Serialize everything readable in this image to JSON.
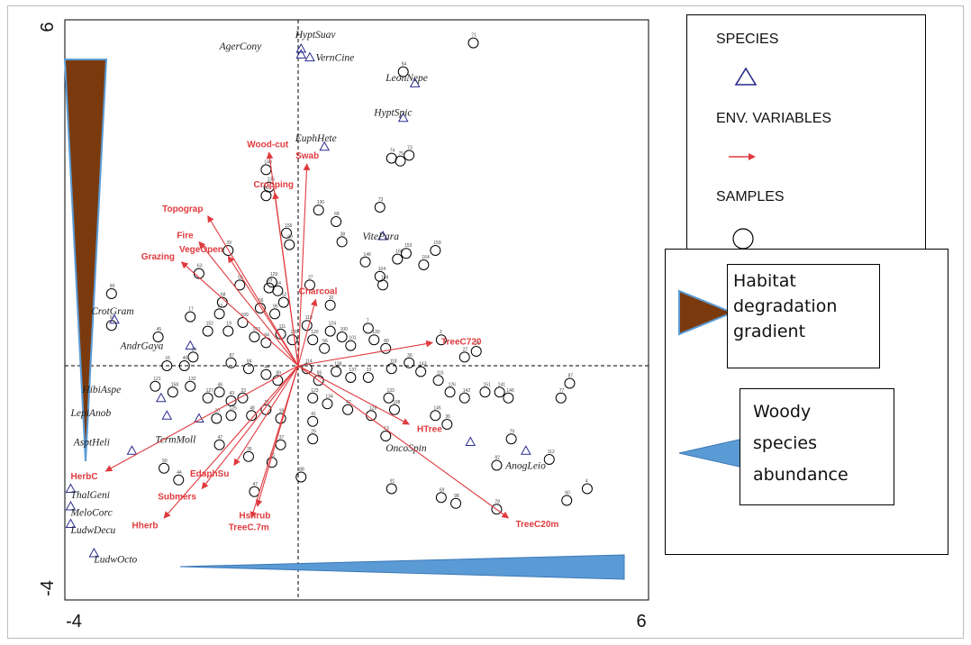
{
  "chart_data": {
    "type": "scatter",
    "subtype": "ordination-triplot",
    "xlim": [
      -4,
      6
    ],
    "ylim": [
      -4,
      6
    ],
    "x_ticks": [
      "-4",
      "6"
    ],
    "y_ticks": [
      "-4",
      "6"
    ],
    "colors": {
      "env_arrow": "#e03a3e",
      "species_marker": "#2b2b8f",
      "sample_marker": "#000000",
      "degradation_wedge": "#7b3a0d",
      "woody_wedge": "#5b9bd5"
    },
    "legend": {
      "placement": "right",
      "items": [
        {
          "label": "SPECIES",
          "marker": "triangle"
        },
        {
          "label": "ENV. VARIABLES",
          "marker": "arrow"
        },
        {
          "label": "SAMPLES",
          "marker": "circle"
        }
      ]
    },
    "gradient_legend": [
      {
        "label": "Habitat degradation gradient",
        "lines": [
          "Habitat",
          "degradation",
          "gradient"
        ]
      },
      {
        "label": "Woody species abundance",
        "lines": [
          "Woody",
          "species",
          "abundance"
        ]
      }
    ],
    "env_variables": [
      {
        "name": "Wood-cut",
        "x": -0.5,
        "y": 3.7
      },
      {
        "name": "Swab",
        "x": 0.15,
        "y": 3.5
      },
      {
        "name": "Cropping",
        "x": -0.4,
        "y": 3.0
      },
      {
        "name": "Topograp",
        "x": -1.55,
        "y": 2.6
      },
      {
        "name": "Fire",
        "x": -1.7,
        "y": 2.15
      },
      {
        "name": "Grazing",
        "x": -2.0,
        "y": 1.8
      },
      {
        "name": "VegeOpen",
        "x": -1.2,
        "y": 1.9
      },
      {
        "name": "Charcoal",
        "x": 0.3,
        "y": 1.15
      },
      {
        "name": "TreeC720",
        "x": 2.3,
        "y": 0.4
      },
      {
        "name": "HTree",
        "x": 1.9,
        "y": -1.0
      },
      {
        "name": "TreeC20m",
        "x": 3.6,
        "y": -2.6
      },
      {
        "name": "EdaphSu",
        "x": -1.1,
        "y": -1.7
      },
      {
        "name": "Submers",
        "x": -1.65,
        "y": -2.1
      },
      {
        "name": "Hherb",
        "x": -2.3,
        "y": -2.6
      },
      {
        "name": "Hshrub",
        "x": -0.7,
        "y": -2.4
      },
      {
        "name": "TreeC.7m",
        "x": -0.8,
        "y": -2.6
      },
      {
        "name": "HerbC",
        "x": -3.3,
        "y": -1.8
      }
    ],
    "species": [
      {
        "name": "HyptSuav",
        "x": 0.05,
        "y": 5.5,
        "lx": -0.05,
        "ly": 5.75
      },
      {
        "name": "AgerCony",
        "x": 0.05,
        "y": 5.4,
        "lx": -1.35,
        "ly": 5.55
      },
      {
        "name": "VernCine",
        "x": 0.2,
        "y": 5.35,
        "lx": 0.3,
        "ly": 5.35
      },
      {
        "name": "LeonNepe",
        "x": 2.0,
        "y": 4.9,
        "lx": 1.5,
        "ly": 5.0
      },
      {
        "name": "HyptSpic",
        "x": 1.8,
        "y": 4.3,
        "lx": 1.3,
        "ly": 4.4
      },
      {
        "name": "EuphHete",
        "x": 0.45,
        "y": 3.8,
        "lx": -0.05,
        "ly": 3.95
      },
      {
        "name": "VitePara",
        "x": 1.45,
        "y": 2.25,
        "lx": 1.1,
        "ly": 2.25
      },
      {
        "name": "CrotGram",
        "x": -3.15,
        "y": 0.8,
        "lx": -3.55,
        "ly": 0.95
      },
      {
        "name": "AndrGaya",
        "x": -1.85,
        "y": 0.35,
        "lx": -3.05,
        "ly": 0.35
      },
      {
        "name": "HibiAspe",
        "x": -2.35,
        "y": -0.55,
        "lx": -3.7,
        "ly": -0.4
      },
      {
        "name": "LepiAnob",
        "x": -2.25,
        "y": -0.85,
        "lx": -3.9,
        "ly": -0.8
      },
      {
        "name": "AsptHeli",
        "x": -2.85,
        "y": -1.45,
        "lx": -3.85,
        "ly": -1.3
      },
      {
        "name": "TermMoll",
        "x": -1.7,
        "y": -0.9,
        "lx": -2.45,
        "ly": -1.25
      },
      {
        "name": "OncoSpin",
        "x": 2.95,
        "y": -1.3,
        "lx": 1.5,
        "ly": -1.4
      },
      {
        "name": "AnogLeio",
        "x": 3.9,
        "y": -1.45,
        "lx": 3.55,
        "ly": -1.7
      },
      {
        "name": "ThalGeni",
        "x": -3.9,
        "y": -2.1,
        "lx": -3.9,
        "ly": -2.2
      },
      {
        "name": "MeloCorc",
        "x": -3.9,
        "y": -2.4,
        "lx": -3.9,
        "ly": -2.5
      },
      {
        "name": "LudwDecu",
        "x": -3.9,
        "y": -2.7,
        "lx": -3.9,
        "ly": -2.8
      },
      {
        "name": "LudwOcto",
        "x": -3.5,
        "y": -3.2,
        "lx": -3.5,
        "ly": -3.3
      }
    ],
    "samples": [
      {
        "x": 3.0,
        "y": 5.6,
        "id": "71"
      },
      {
        "x": 1.8,
        "y": 5.1,
        "id": "64"
      },
      {
        "x": 1.6,
        "y": 3.6,
        "id": "74"
      },
      {
        "x": 1.75,
        "y": 3.55,
        "id": "75"
      },
      {
        "x": 1.9,
        "y": 3.65,
        "id": "73"
      },
      {
        "x": 1.4,
        "y": 2.75,
        "id": "73"
      },
      {
        "x": 0.35,
        "y": 2.7,
        "id": "136"
      },
      {
        "x": 0.65,
        "y": 2.5,
        "id": "68"
      },
      {
        "x": 0.75,
        "y": 2.15,
        "id": "38"
      },
      {
        "x": 1.85,
        "y": 1.95,
        "id": "153"
      },
      {
        "x": 1.7,
        "y": 1.85,
        "id": "160"
      },
      {
        "x": 2.35,
        "y": 2.0,
        "id": "159"
      },
      {
        "x": 2.15,
        "y": 1.75,
        "id": "164"
      },
      {
        "x": 1.15,
        "y": 1.8,
        "id": "146"
      },
      {
        "x": 1.4,
        "y": 1.55,
        "id": "104"
      },
      {
        "x": 1.45,
        "y": 1.4,
        "id": "148"
      },
      {
        "x": -0.2,
        "y": 2.3,
        "id": "156"
      },
      {
        "x": -0.15,
        "y": 2.1,
        "id": "80"
      },
      {
        "x": -0.55,
        "y": 3.4,
        "id": "140"
      },
      {
        "x": -0.5,
        "y": 3.1,
        "id": "135"
      },
      {
        "x": -0.55,
        "y": 2.95,
        "id": "60"
      },
      {
        "x": -1.2,
        "y": 2.0,
        "id": "39"
      },
      {
        "x": -1.7,
        "y": 1.6,
        "id": "63"
      },
      {
        "x": -1.0,
        "y": 1.4,
        "id": "55"
      },
      {
        "x": -0.45,
        "y": 1.45,
        "id": "129"
      },
      {
        "x": -0.5,
        "y": 1.35,
        "id": "69"
      },
      {
        "x": -0.35,
        "y": 1.3,
        "id": "54"
      },
      {
        "x": 0.2,
        "y": 1.4,
        "id": "27"
      },
      {
        "x": -0.25,
        "y": 1.1,
        "id": "52"
      },
      {
        "x": -0.65,
        "y": 1.0,
        "id": "66"
      },
      {
        "x": -0.4,
        "y": 0.9,
        "id": "95"
      },
      {
        "x": 0.55,
        "y": 1.05,
        "id": "10"
      },
      {
        "x": -1.3,
        "y": 1.1,
        "id": "68"
      },
      {
        "x": -1.35,
        "y": 0.9,
        "id": "62"
      },
      {
        "x": -1.85,
        "y": 0.85,
        "id": "17"
      },
      {
        "x": -3.2,
        "y": 1.25,
        "id": "90"
      },
      {
        "x": -3.2,
        "y": 0.7,
        "id": "97"
      },
      {
        "x": -1.55,
        "y": 0.6,
        "id": "152"
      },
      {
        "x": -1.2,
        "y": 0.6,
        "id": "19"
      },
      {
        "x": -0.95,
        "y": 0.75,
        "id": "109"
      },
      {
        "x": -0.75,
        "y": 0.5,
        "id": "103"
      },
      {
        "x": -0.55,
        "y": 0.4,
        "id": "94"
      },
      {
        "x": -0.3,
        "y": 0.55,
        "id": "111"
      },
      {
        "x": -0.1,
        "y": 0.45,
        "id": "105"
      },
      {
        "x": 0.15,
        "y": 0.7,
        "id": "119"
      },
      {
        "x": 0.25,
        "y": 0.45,
        "id": "120"
      },
      {
        "x": 0.45,
        "y": 0.3,
        "id": "56"
      },
      {
        "x": 0.55,
        "y": 0.6,
        "id": "124"
      },
      {
        "x": 0.75,
        "y": 0.5,
        "id": "100"
      },
      {
        "x": 0.9,
        "y": 0.35,
        "id": "101"
      },
      {
        "x": 1.2,
        "y": 0.65,
        "id": "7"
      },
      {
        "x": 1.3,
        "y": 0.45,
        "id": "130"
      },
      {
        "x": 1.5,
        "y": 0.3,
        "id": "80"
      },
      {
        "x": 2.45,
        "y": 0.45,
        "id": "3"
      },
      {
        "x": 2.85,
        "y": 0.15,
        "id": "27"
      },
      {
        "x": 3.05,
        "y": 0.25,
        "id": "14"
      },
      {
        "x": -2.4,
        "y": 0.5,
        "id": "45"
      },
      {
        "x": -1.8,
        "y": 0.15,
        "id": "24"
      },
      {
        "x": -1.95,
        "y": 0.0,
        "id": "40"
      },
      {
        "x": -2.25,
        "y": 0.0,
        "id": "16"
      },
      {
        "x": -1.15,
        "y": 0.05,
        "id": "87"
      },
      {
        "x": -0.85,
        "y": -0.05,
        "id": "84"
      },
      {
        "x": -0.55,
        "y": -0.15,
        "id": "44"
      },
      {
        "x": -0.35,
        "y": -0.25,
        "id": "89"
      },
      {
        "x": 0.15,
        "y": -0.05,
        "id": "114"
      },
      {
        "x": 0.35,
        "y": -0.25,
        "id": "85"
      },
      {
        "x": 0.65,
        "y": -0.1,
        "id": "138"
      },
      {
        "x": 0.9,
        "y": -0.2,
        "id": "137"
      },
      {
        "x": 1.2,
        "y": -0.2,
        "id": "33"
      },
      {
        "x": 1.6,
        "y": -0.05,
        "id": "118"
      },
      {
        "x": 1.9,
        "y": 0.05,
        "id": "36"
      },
      {
        "x": 2.1,
        "y": -0.1,
        "id": "143"
      },
      {
        "x": 2.4,
        "y": -0.25,
        "id": "115"
      },
      {
        "x": 2.6,
        "y": -0.45,
        "id": "126"
      },
      {
        "x": 2.85,
        "y": -0.55,
        "id": "142"
      },
      {
        "x": 3.2,
        "y": -0.45,
        "id": "151"
      },
      {
        "x": 3.45,
        "y": -0.45,
        "id": "141"
      },
      {
        "x": 3.6,
        "y": -0.55,
        "id": "146"
      },
      {
        "x": 4.65,
        "y": -0.3,
        "id": "87"
      },
      {
        "x": 4.5,
        "y": -0.55,
        "id": "77"
      },
      {
        "x": -2.45,
        "y": -0.35,
        "id": "121"
      },
      {
        "x": -2.15,
        "y": -0.45,
        "id": "158"
      },
      {
        "x": -1.85,
        "y": -0.35,
        "id": "132"
      },
      {
        "x": -1.55,
        "y": -0.55,
        "id": "127"
      },
      {
        "x": -1.35,
        "y": -0.45,
        "id": "46"
      },
      {
        "x": -1.15,
        "y": -0.6,
        "id": "43"
      },
      {
        "x": -0.95,
        "y": -0.55,
        "id": "23"
      },
      {
        "x": -0.8,
        "y": -0.85,
        "id": "48"
      },
      {
        "x": -1.15,
        "y": -0.85,
        "id": "125"
      },
      {
        "x": -1.4,
        "y": -0.9,
        "id": "20"
      },
      {
        "x": -0.55,
        "y": -0.75,
        "id": "31"
      },
      {
        "x": -0.3,
        "y": -0.9,
        "id": "18"
      },
      {
        "x": 0.25,
        "y": -0.55,
        "id": "123"
      },
      {
        "x": 0.5,
        "y": -0.65,
        "id": "134"
      },
      {
        "x": 0.85,
        "y": -0.75,
        "id": "42"
      },
      {
        "x": 1.25,
        "y": -0.85,
        "id": "128"
      },
      {
        "x": 1.55,
        "y": -0.55,
        "id": "133"
      },
      {
        "x": 1.65,
        "y": -0.75,
        "id": "108"
      },
      {
        "x": 2.35,
        "y": -0.85,
        "id": "145"
      },
      {
        "x": 2.55,
        "y": -1.0,
        "id": "36"
      },
      {
        "x": 0.25,
        "y": -0.95,
        "id": "41"
      },
      {
        "x": 1.5,
        "y": -1.2,
        "id": "13"
      },
      {
        "x": -0.3,
        "y": -1.35,
        "id": "37"
      },
      {
        "x": 0.25,
        "y": -1.25,
        "id": "29"
      },
      {
        "x": -0.45,
        "y": -1.65,
        "id": "21"
      },
      {
        "x": -0.85,
        "y": -1.55,
        "id": "35"
      },
      {
        "x": -1.35,
        "y": -1.35,
        "id": "47"
      },
      {
        "x": -2.3,
        "y": -1.75,
        "id": "50"
      },
      {
        "x": -2.05,
        "y": -1.95,
        "id": "44"
      },
      {
        "x": -0.75,
        "y": -2.15,
        "id": "47"
      },
      {
        "x": 0.05,
        "y": -1.9,
        "id": "88"
      },
      {
        "x": 3.65,
        "y": -1.25,
        "id": "79"
      },
      {
        "x": 3.4,
        "y": -1.7,
        "id": "82"
      },
      {
        "x": 4.3,
        "y": -1.6,
        "id": "112"
      },
      {
        "x": 4.95,
        "y": -2.1,
        "id": "4"
      },
      {
        "x": 4.6,
        "y": -2.3,
        "id": "60"
      },
      {
        "x": 2.45,
        "y": -2.25,
        "id": "69"
      },
      {
        "x": 2.7,
        "y": -2.35,
        "id": "98"
      },
      {
        "x": 1.6,
        "y": -2.1,
        "id": "91"
      },
      {
        "x": 3.4,
        "y": -2.45,
        "id": "78"
      }
    ]
  }
}
